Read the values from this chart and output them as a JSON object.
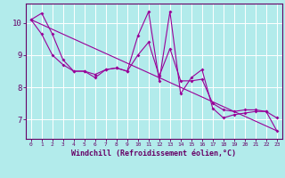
{
  "xlabel": "Windchill (Refroidissement éolien,°C)",
  "bg_color": "#b2ebeb",
  "line_color": "#990099",
  "grid_color": "#ffffff",
  "axis_color": "#660066",
  "text_color": "#660066",
  "xlim": [
    -0.5,
    23.5
  ],
  "ylim": [
    6.4,
    10.6
  ],
  "yticks": [
    7,
    8,
    9,
    10
  ],
  "xticks": [
    0,
    1,
    2,
    3,
    4,
    5,
    6,
    7,
    8,
    9,
    10,
    11,
    12,
    13,
    14,
    15,
    16,
    17,
    18,
    19,
    20,
    21,
    22,
    23
  ],
  "line1_x": [
    0,
    1,
    2,
    3,
    4,
    5,
    6,
    7,
    8,
    9,
    10,
    11,
    12,
    13,
    14,
    15,
    16,
    17,
    18,
    19,
    20,
    21,
    22,
    23
  ],
  "line1_y": [
    10.1,
    10.3,
    9.65,
    8.85,
    8.5,
    8.5,
    8.3,
    8.55,
    8.6,
    8.5,
    9.6,
    10.35,
    8.2,
    10.35,
    7.8,
    8.3,
    8.55,
    7.35,
    7.05,
    7.15,
    7.2,
    7.25,
    7.25,
    6.65
  ],
  "line2_x": [
    0,
    1,
    2,
    3,
    4,
    5,
    6,
    7,
    8,
    9,
    10,
    11,
    12,
    13,
    14,
    15,
    16,
    17,
    18,
    19,
    20,
    21,
    22,
    23
  ],
  "line2_y": [
    10.1,
    9.65,
    9.0,
    8.7,
    8.5,
    8.5,
    8.4,
    8.55,
    8.6,
    8.5,
    9.0,
    9.4,
    8.35,
    9.2,
    8.2,
    8.2,
    8.25,
    7.5,
    7.3,
    7.25,
    7.3,
    7.3,
    7.25,
    7.05
  ],
  "trend_x": [
    0,
    23
  ],
  "trend_y": [
    10.1,
    6.65
  ]
}
